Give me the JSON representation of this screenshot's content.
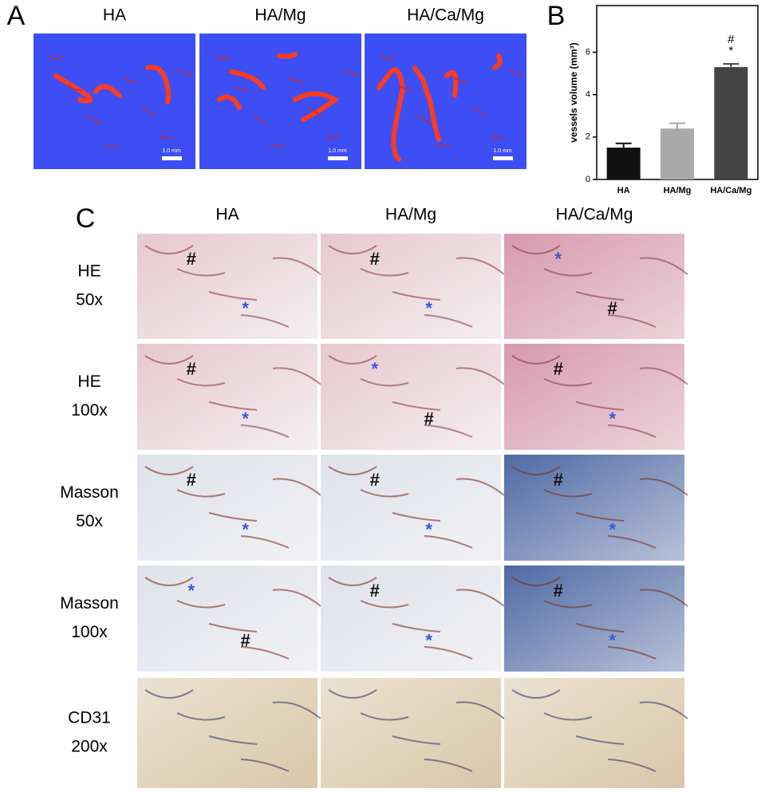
{
  "panel_a": {
    "label": "A",
    "columns": [
      "HA",
      "HA/Mg",
      "HA/Ca/Mg"
    ],
    "scale_bar": "1.0 mm"
  },
  "chart_data": {
    "type": "bar",
    "label": "B",
    "ylabel": "vessels volume (mm³)",
    "categories": [
      "HA",
      "HA/Mg",
      "HA/Ca/Mg"
    ],
    "values": [
      1.5,
      2.4,
      5.3
    ],
    "errors": [
      0.2,
      0.25,
      0.15
    ],
    "colors": [
      "#111111",
      "#a9a9a9",
      "#444444"
    ],
    "ylim": [
      0,
      8.2
    ],
    "yticks": [
      0,
      2,
      4,
      6
    ],
    "annotations": [
      "#",
      "*"
    ]
  },
  "panel_c": {
    "label": "C",
    "columns": [
      "HA",
      "HA/Mg",
      "HA/Ca/Mg"
    ],
    "rows": [
      {
        "label": [
          "HE",
          "50x"
        ],
        "cells": [
          [
            "#",
            "*"
          ],
          [
            "#",
            "*"
          ],
          [
            "*",
            "#"
          ]
        ]
      },
      {
        "label": [
          "HE",
          "100x"
        ],
        "cells": [
          [
            "#",
            "*"
          ],
          [
            "*",
            "#"
          ],
          [
            "#",
            "*"
          ]
        ]
      },
      {
        "label": [
          "Masson",
          "50x"
        ],
        "cells": [
          [
            "#",
            "*"
          ],
          [
            "#",
            "*"
          ],
          [
            "#",
            "*"
          ]
        ]
      },
      {
        "label": [
          "Masson",
          "100x"
        ],
        "cells": [
          [
            "*",
            "#"
          ],
          [
            "#",
            "*"
          ],
          [
            "#",
            "*"
          ]
        ]
      },
      {
        "label": [
          "CD31",
          "200x"
        ],
        "cells": [
          [],
          [],
          []
        ]
      }
    ]
  }
}
